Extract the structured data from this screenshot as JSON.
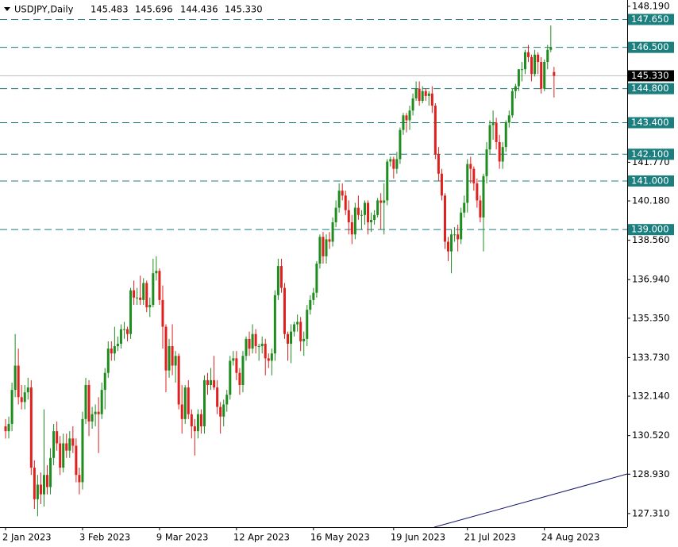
{
  "chart_data": {
    "type": "candlestick",
    "title": "USDJPY,Daily",
    "info": [
      "145.483",
      "145.696",
      "144.436",
      "145.330"
    ],
    "up_color": "#1e8c1e",
    "down_color": "#e0201e",
    "level_color": "#1b7f7f",
    "ylim": [
      126.75,
      148.45
    ],
    "yticks": [
      {
        "value": 148.19,
        "label": "148.190"
      },
      {
        "value": 141.77,
        "label": "141.770"
      },
      {
        "value": 140.18,
        "label": "140.180"
      },
      {
        "value": 138.56,
        "label": "138.560"
      },
      {
        "value": 136.94,
        "label": "136.940"
      },
      {
        "value": 135.35,
        "label": "135.350"
      },
      {
        "value": 133.73,
        "label": "133.730"
      },
      {
        "value": 132.14,
        "label": "132.140"
      },
      {
        "value": 130.52,
        "label": "130.520"
      },
      {
        "value": 128.93,
        "label": "128.930"
      },
      {
        "value": 127.31,
        "label": "127.310"
      }
    ],
    "levels": [
      {
        "value": 147.65,
        "label": "147.650"
      },
      {
        "value": 146.5,
        "label": "146.500"
      },
      {
        "value": 144.8,
        "label": "144.800"
      },
      {
        "value": 143.4,
        "label": "143.400"
      },
      {
        "value": 142.1,
        "label": "142.100"
      },
      {
        "value": 141.0,
        "label": "141.000"
      },
      {
        "value": 139.0,
        "label": "139.000"
      }
    ],
    "current_price": {
      "value": 145.33,
      "label": "145.330"
    },
    "categories": [
      "2 Jan 2023",
      null,
      null,
      null,
      null,
      null,
      null,
      null,
      null,
      null,
      null,
      null,
      null,
      null,
      null,
      null,
      null,
      null,
      null,
      null,
      null,
      null,
      null,
      null,
      "3 Feb 2023",
      null,
      null,
      null,
      null,
      null,
      null,
      null,
      null,
      null,
      null,
      null,
      null,
      null,
      null,
      null,
      null,
      null,
      null,
      null,
      null,
      null,
      null,
      null,
      "9 Mar 2023",
      null,
      null,
      null,
      null,
      null,
      null,
      null,
      null,
      null,
      null,
      null,
      null,
      null,
      null,
      null,
      null,
      null,
      null,
      null,
      null,
      null,
      null,
      null,
      "12 Apr 2023",
      null,
      null,
      null,
      null,
      null,
      null,
      null,
      null,
      null,
      null,
      null,
      null,
      null,
      null,
      null,
      null,
      null,
      null,
      null,
      null,
      null,
      null,
      null,
      "16 May 2023",
      null,
      null,
      null,
      null,
      null,
      null,
      null,
      null,
      null,
      null,
      null,
      null,
      null,
      null,
      null,
      null,
      null,
      null,
      null,
      null,
      null,
      null,
      null,
      null,
      "19 Jun 2023",
      null,
      null,
      null,
      null,
      null,
      null,
      null,
      null,
      null,
      null,
      null,
      null,
      null,
      null,
      null,
      null,
      null,
      null,
      null,
      null,
      null,
      null,
      "21 Jul 2023",
      null,
      null,
      null,
      null,
      null,
      null,
      null,
      null,
      null,
      null,
      null,
      null,
      null,
      null,
      null,
      null,
      null,
      null,
      null,
      null,
      null,
      null,
      null,
      "24 Aug 2023",
      null,
      null,
      null
    ],
    "candles": [
      [
        130.9,
        131.2,
        130.4,
        130.7
      ],
      [
        130.7,
        131.3,
        130.4,
        131.0
      ],
      [
        131.0,
        132.7,
        130.7,
        132.4
      ],
      [
        132.4,
        134.7,
        132.1,
        133.4
      ],
      [
        133.4,
        134.1,
        131.8,
        132.1
      ],
      [
        132.1,
        132.6,
        131.6,
        131.9
      ],
      [
        131.9,
        132.6,
        131.6,
        132.3
      ],
      [
        132.3,
        132.9,
        132.0,
        132.5
      ],
      [
        132.5,
        132.8,
        128.9,
        129.2
      ],
      [
        129.2,
        129.5,
        127.5,
        127.9
      ],
      [
        127.9,
        128.9,
        127.2,
        128.5
      ],
      [
        128.5,
        129.0,
        127.7,
        128.1
      ],
      [
        128.1,
        131.6,
        127.6,
        128.9
      ],
      [
        128.9,
        129.3,
        128.1,
        128.4
      ],
      [
        128.4,
        130.0,
        128.1,
        129.6
      ],
      [
        129.6,
        131.0,
        129.3,
        130.7
      ],
      [
        130.7,
        131.1,
        129.9,
        130.2
      ],
      [
        130.2,
        130.5,
        128.9,
        129.2
      ],
      [
        129.2,
        130.6,
        129.0,
        130.2
      ],
      [
        130.2,
        130.6,
        129.6,
        129.9
      ],
      [
        129.9,
        130.7,
        129.6,
        130.4
      ],
      [
        130.4,
        130.9,
        129.8,
        130.1
      ],
      [
        130.1,
        130.4,
        128.6,
        128.9
      ],
      [
        128.9,
        129.2,
        128.1,
        128.6
      ],
      [
        128.6,
        131.5,
        128.3,
        131.2
      ],
      [
        131.2,
        132.9,
        131.0,
        132.6
      ],
      [
        132.6,
        132.8,
        130.5,
        131.1
      ],
      [
        131.1,
        131.7,
        130.8,
        131.4
      ],
      [
        131.4,
        131.8,
        130.9,
        131.5
      ],
      [
        131.5,
        132.1,
        129.8,
        131.4
      ],
      [
        131.4,
        132.7,
        131.2,
        132.4
      ],
      [
        132.4,
        133.3,
        131.6,
        133.1
      ],
      [
        133.1,
        134.4,
        132.9,
        134.1
      ],
      [
        134.1,
        134.4,
        133.6,
        133.9
      ],
      [
        133.9,
        135.0,
        133.6,
        134.2
      ],
      [
        134.2,
        134.6,
        134.0,
        134.3
      ],
      [
        134.3,
        135.1,
        134.1,
        134.9
      ],
      [
        134.9,
        135.2,
        134.5,
        134.9
      ],
      [
        134.9,
        135.0,
        134.4,
        134.7
      ],
      [
        134.7,
        136.6,
        134.5,
        136.5
      ],
      [
        136.5,
        136.9,
        135.9,
        136.2
      ],
      [
        136.2,
        136.6,
        135.9,
        136.2
      ],
      [
        136.2,
        137.1,
        135.9,
        136.1
      ],
      [
        136.1,
        137.0,
        135.9,
        136.8
      ],
      [
        136.8,
        136.9,
        135.6,
        135.8
      ],
      [
        135.8,
        136.2,
        135.4,
        135.9
      ],
      [
        135.9,
        137.8,
        135.8,
        137.2
      ],
      [
        137.2,
        137.9,
        136.9,
        137.3
      ],
      [
        137.3,
        137.4,
        135.9,
        136.1
      ],
      [
        136.1,
        136.7,
        134.1,
        135.0
      ],
      [
        135.0,
        135.1,
        132.3,
        133.2
      ],
      [
        133.2,
        134.5,
        132.9,
        134.2
      ],
      [
        134.2,
        135.1,
        133.0,
        133.4
      ],
      [
        133.4,
        134.0,
        132.7,
        133.8
      ],
      [
        133.8,
        133.9,
        131.6,
        131.8
      ],
      [
        131.8,
        132.6,
        130.6,
        131.2
      ],
      [
        131.2,
        132.6,
        131.0,
        132.5
      ],
      [
        132.5,
        132.8,
        131.2,
        131.4
      ],
      [
        131.4,
        131.6,
        130.4,
        130.9
      ],
      [
        130.9,
        131.2,
        129.7,
        130.7
      ],
      [
        130.7,
        131.6,
        130.4,
        131.4
      ],
      [
        131.4,
        131.6,
        130.6,
        130.9
      ],
      [
        130.9,
        133.0,
        130.6,
        132.8
      ],
      [
        132.8,
        133.1,
        132.2,
        132.6
      ],
      [
        132.6,
        133.3,
        132.4,
        132.8
      ],
      [
        132.8,
        133.8,
        132.4,
        132.5
      ],
      [
        132.5,
        132.8,
        131.4,
        131.7
      ],
      [
        131.7,
        131.9,
        130.6,
        131.3
      ],
      [
        131.3,
        132.0,
        130.9,
        131.8
      ],
      [
        131.8,
        132.4,
        131.5,
        132.2
      ],
      [
        132.2,
        133.8,
        132.0,
        133.6
      ],
      [
        133.6,
        134.0,
        133.4,
        133.7
      ],
      [
        133.7,
        134.0,
        132.8,
        133.1
      ],
      [
        133.1,
        133.3,
        132.2,
        132.6
      ],
      [
        132.6,
        134.0,
        132.3,
        133.8
      ],
      [
        133.8,
        134.6,
        133.6,
        134.5
      ],
      [
        134.5,
        134.8,
        133.8,
        134.1
      ],
      [
        134.1,
        135.1,
        133.9,
        134.7
      ],
      [
        134.7,
        134.9,
        133.9,
        134.2
      ],
      [
        134.2,
        134.3,
        133.6,
        134.2
      ],
      [
        134.2,
        134.6,
        133.9,
        134.3
      ],
      [
        134.3,
        134.5,
        133.0,
        133.7
      ],
      [
        133.7,
        133.9,
        133.3,
        133.6
      ],
      [
        133.6,
        134.1,
        133.0,
        133.9
      ],
      [
        133.9,
        136.5,
        133.6,
        136.3
      ],
      [
        136.3,
        137.8,
        136.1,
        137.5
      ],
      [
        137.5,
        137.8,
        136.4,
        136.6
      ],
      [
        136.6,
        136.8,
        134.5,
        134.7
      ],
      [
        134.7,
        134.8,
        133.6,
        134.3
      ],
      [
        134.3,
        135.1,
        133.5,
        134.8
      ],
      [
        134.8,
        135.2,
        134.6,
        135.1
      ],
      [
        135.1,
        135.5,
        134.8,
        135.2
      ],
      [
        135.2,
        135.4,
        134.0,
        134.4
      ],
      [
        134.4,
        134.8,
        133.8,
        134.5
      ],
      [
        134.5,
        135.9,
        134.2,
        135.7
      ],
      [
        135.7,
        136.3,
        135.5,
        136.1
      ],
      [
        136.1,
        136.6,
        135.9,
        136.4
      ],
      [
        136.4,
        137.7,
        136.2,
        137.6
      ],
      [
        137.6,
        138.8,
        137.4,
        138.7
      ],
      [
        138.7,
        138.9,
        137.6,
        137.9
      ],
      [
        137.9,
        138.8,
        137.6,
        138.6
      ],
      [
        138.6,
        138.9,
        138.2,
        138.5
      ],
      [
        138.5,
        139.5,
        138.3,
        139.3
      ],
      [
        139.3,
        140.2,
        139.1,
        139.9
      ],
      [
        139.9,
        140.9,
        139.7,
        140.6
      ],
      [
        140.6,
        140.9,
        140.2,
        140.4
      ],
      [
        140.4,
        140.6,
        139.6,
        139.8
      ],
      [
        139.8,
        140.2,
        138.8,
        139.3
      ],
      [
        139.3,
        139.6,
        138.4,
        138.8
      ],
      [
        138.8,
        140.1,
        138.6,
        139.9
      ],
      [
        139.9,
        140.4,
        139.4,
        139.6
      ],
      [
        139.6,
        139.8,
        139.0,
        139.6
      ],
      [
        139.6,
        140.2,
        139.2,
        140.1
      ],
      [
        140.1,
        140.2,
        138.8,
        139.3
      ],
      [
        139.3,
        139.7,
        138.9,
        139.4
      ],
      [
        139.4,
        139.8,
        139.2,
        139.6
      ],
      [
        139.6,
        140.3,
        139.5,
        140.2
      ],
      [
        140.2,
        140.5,
        139.0,
        140.1
      ],
      [
        140.1,
        140.9,
        138.8,
        140.2
      ],
      [
        140.2,
        141.9,
        140.0,
        141.8
      ],
      [
        141.8,
        142.0,
        141.6,
        141.9
      ],
      [
        141.9,
        142.0,
        141.1,
        141.5
      ],
      [
        141.5,
        142.2,
        141.3,
        141.9
      ],
      [
        141.9,
        143.2,
        141.7,
        143.1
      ],
      [
        143.1,
        143.8,
        142.9,
        143.7
      ],
      [
        143.7,
        143.8,
        143.0,
        143.5
      ],
      [
        143.5,
        144.1,
        143.1,
        143.9
      ],
      [
        143.9,
        144.6,
        143.7,
        144.4
      ],
      [
        144.4,
        145.1,
        144.3,
        144.8
      ],
      [
        144.8,
        145.1,
        144.1,
        144.3
      ],
      [
        144.3,
        144.9,
        144.2,
        144.7
      ],
      [
        144.7,
        144.8,
        144.3,
        144.5
      ],
      [
        144.5,
        144.7,
        144.1,
        144.6
      ],
      [
        144.6,
        144.9,
        143.8,
        144.1
      ],
      [
        144.1,
        144.2,
        141.9,
        142.1
      ],
      [
        142.1,
        142.4,
        141.0,
        141.3
      ],
      [
        141.3,
        141.5,
        140.2,
        140.4
      ],
      [
        140.4,
        140.5,
        138.2,
        138.5
      ],
      [
        138.5,
        138.7,
        137.7,
        138.1
      ],
      [
        138.1,
        139.0,
        137.2,
        138.8
      ],
      [
        138.8,
        139.1,
        138.5,
        138.8
      ],
      [
        138.8,
        139.2,
        138.1,
        138.6
      ],
      [
        138.6,
        139.9,
        138.4,
        139.7
      ],
      [
        139.7,
        140.4,
        139.5,
        140.1
      ],
      [
        140.1,
        141.9,
        139.7,
        141.7
      ],
      [
        141.7,
        142.0,
        140.9,
        141.5
      ],
      [
        141.5,
        141.6,
        140.6,
        140.9
      ],
      [
        140.9,
        141.1,
        139.9,
        140.2
      ],
      [
        140.2,
        140.4,
        139.3,
        139.5
      ],
      [
        139.5,
        141.3,
        138.1,
        141.2
      ],
      [
        141.2,
        142.6,
        140.9,
        142.3
      ],
      [
        142.3,
        143.5,
        142.1,
        143.3
      ],
      [
        143.3,
        143.9,
        142.7,
        143.4
      ],
      [
        143.4,
        143.6,
        142.3,
        142.6
      ],
      [
        142.6,
        142.9,
        141.5,
        141.8
      ],
      [
        141.8,
        142.6,
        141.5,
        142.4
      ],
      [
        142.4,
        143.5,
        142.2,
        143.4
      ],
      [
        143.4,
        143.9,
        143.2,
        143.7
      ],
      [
        143.7,
        144.8,
        143.6,
        144.7
      ],
      [
        144.7,
        145.0,
        144.4,
        144.9
      ],
      [
        144.9,
        145.6,
        144.7,
        145.6
      ],
      [
        145.6,
        145.9,
        145.1,
        145.6
      ],
      [
        145.6,
        146.4,
        145.4,
        146.3
      ],
      [
        146.3,
        146.6,
        145.9,
        146.1
      ],
      [
        146.1,
        146.2,
        145.1,
        145.4
      ],
      [
        145.4,
        146.4,
        145.3,
        146.2
      ],
      [
        146.2,
        146.3,
        145.4,
        145.9
      ],
      [
        145.9,
        146.1,
        144.6,
        144.8
      ],
      [
        144.8,
        146.0,
        144.7,
        145.9
      ],
      [
        145.9,
        146.6,
        145.6,
        146.4
      ],
      [
        146.4,
        147.4,
        146.3,
        146.5
      ],
      [
        145.483,
        145.696,
        144.436,
        145.33
      ]
    ]
  }
}
